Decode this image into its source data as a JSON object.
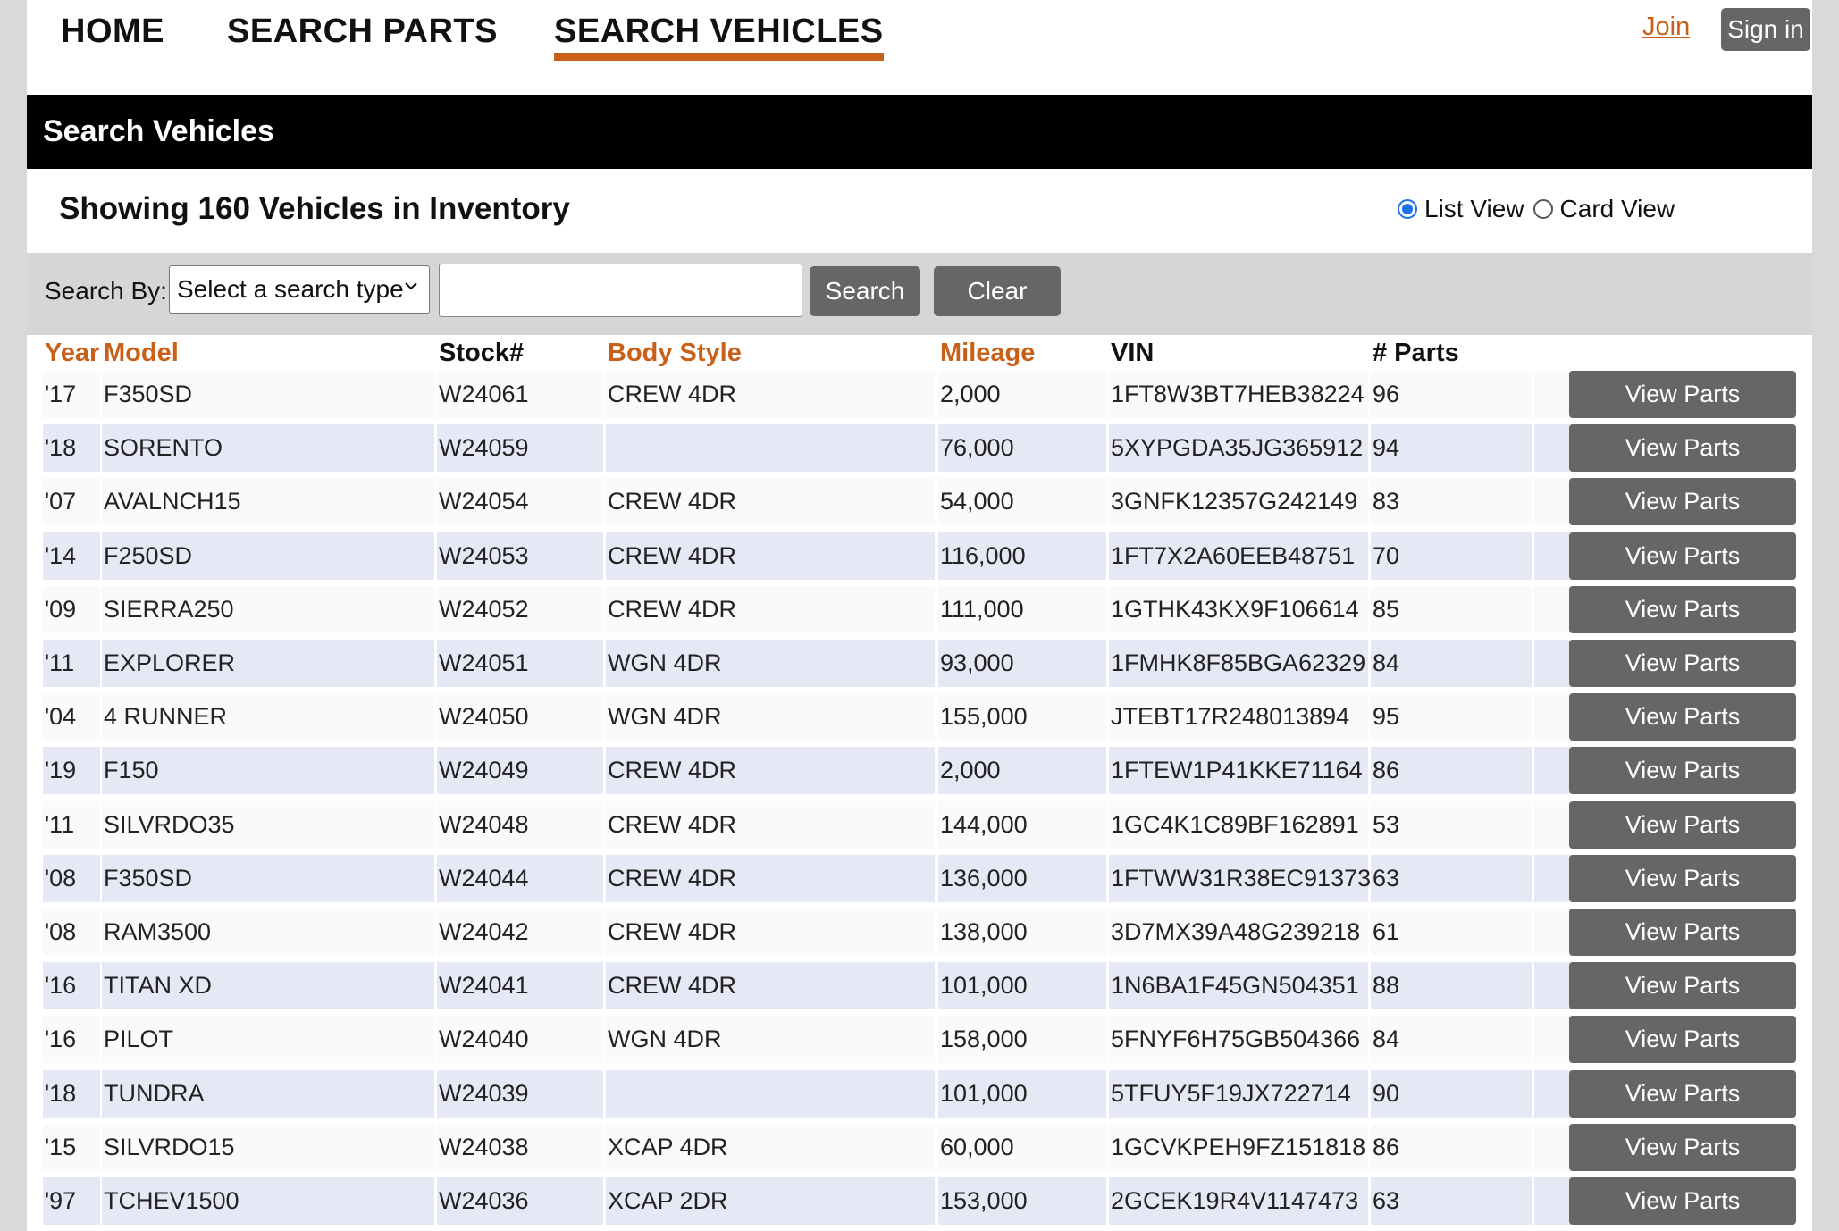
{
  "nav": {
    "home": "HOME",
    "search_parts": "SEARCH PARTS",
    "search_vehicles": "SEARCH VEHICLES",
    "join": "Join",
    "sign_in": "Sign in"
  },
  "header": {
    "title": "Search Vehicles"
  },
  "summary": {
    "text": "Showing 160 Vehicles in Inventory"
  },
  "view_toggle": {
    "list_label": "List View",
    "card_label": "Card View",
    "selected": "list"
  },
  "search": {
    "label": "Search By:",
    "select_value": "Select a search type",
    "input_value": "",
    "search_button": "Search",
    "clear_button": "Clear"
  },
  "table": {
    "headers": {
      "year": "Year",
      "model": "Model",
      "stock": "Stock#",
      "body_style": "Body Style",
      "mileage": "Mileage",
      "vin": "VIN",
      "parts": "# Parts"
    },
    "action_label": "View Parts",
    "rows": [
      {
        "year": "'17",
        "model": "F350SD",
        "stock": "W24061",
        "body": "CREW 4DR",
        "mileage": "2,000",
        "vin": "1FT8W3BT7HEB38224",
        "parts": "96"
      },
      {
        "year": "'18",
        "model": "SORENTO",
        "stock": "W24059",
        "body": "",
        "mileage": "76,000",
        "vin": "5XYPGDA35JG365912",
        "parts": "94"
      },
      {
        "year": "'07",
        "model": "AVALNCH15",
        "stock": "W24054",
        "body": "CREW 4DR",
        "mileage": "54,000",
        "vin": "3GNFK12357G242149",
        "parts": "83"
      },
      {
        "year": "'14",
        "model": "F250SD",
        "stock": "W24053",
        "body": "CREW 4DR",
        "mileage": "116,000",
        "vin": "1FT7X2A60EEB48751",
        "parts": "70"
      },
      {
        "year": "'09",
        "model": "SIERRA250",
        "stock": "W24052",
        "body": "CREW 4DR",
        "mileage": "111,000",
        "vin": "1GTHK43KX9F106614",
        "parts": "85"
      },
      {
        "year": "'11",
        "model": "EXPLORER",
        "stock": "W24051",
        "body": "WGN 4DR",
        "mileage": "93,000",
        "vin": "1FMHK8F85BGA62329",
        "parts": "84"
      },
      {
        "year": "'04",
        "model": "4 RUNNER",
        "stock": "W24050",
        "body": "WGN 4DR",
        "mileage": "155,000",
        "vin": "JTEBT17R248013894",
        "parts": "95"
      },
      {
        "year": "'19",
        "model": "F150",
        "stock": "W24049",
        "body": "CREW 4DR",
        "mileage": "2,000",
        "vin": "1FTEW1P41KKE71164",
        "parts": "86"
      },
      {
        "year": "'11",
        "model": "SILVRDO35",
        "stock": "W24048",
        "body": "CREW 4DR",
        "mileage": "144,000",
        "vin": "1GC4K1C89BF162891",
        "parts": "53"
      },
      {
        "year": "'08",
        "model": "F350SD",
        "stock": "W24044",
        "body": "CREW 4DR",
        "mileage": "136,000",
        "vin": "1FTWW31R38EC91373",
        "parts": "63"
      },
      {
        "year": "'08",
        "model": "RAM3500",
        "stock": "W24042",
        "body": "CREW 4DR",
        "mileage": "138,000",
        "vin": "3D7MX39A48G239218",
        "parts": "61"
      },
      {
        "year": "'16",
        "model": "TITAN XD",
        "stock": "W24041",
        "body": "CREW 4DR",
        "mileage": "101,000",
        "vin": "1N6BA1F45GN504351",
        "parts": "88"
      },
      {
        "year": "'16",
        "model": "PILOT",
        "stock": "W24040",
        "body": "WGN 4DR",
        "mileage": "158,000",
        "vin": "5FNYF6H75GB504366",
        "parts": "84"
      },
      {
        "year": "'18",
        "model": "TUNDRA",
        "stock": "W24039",
        "body": "",
        "mileage": "101,000",
        "vin": "5TFUY5F19JX722714",
        "parts": "90"
      },
      {
        "year": "'15",
        "model": "SILVRDO15",
        "stock": "W24038",
        "body": "XCAP 4DR",
        "mileage": "60,000",
        "vin": "1GCVKPEH9FZ151818",
        "parts": "86"
      },
      {
        "year": "'97",
        "model": "TCHEV1500",
        "stock": "W24036",
        "body": "XCAP 2DR",
        "mileage": "153,000",
        "vin": "2GCEK19R4V1147473",
        "parts": "63"
      }
    ]
  }
}
